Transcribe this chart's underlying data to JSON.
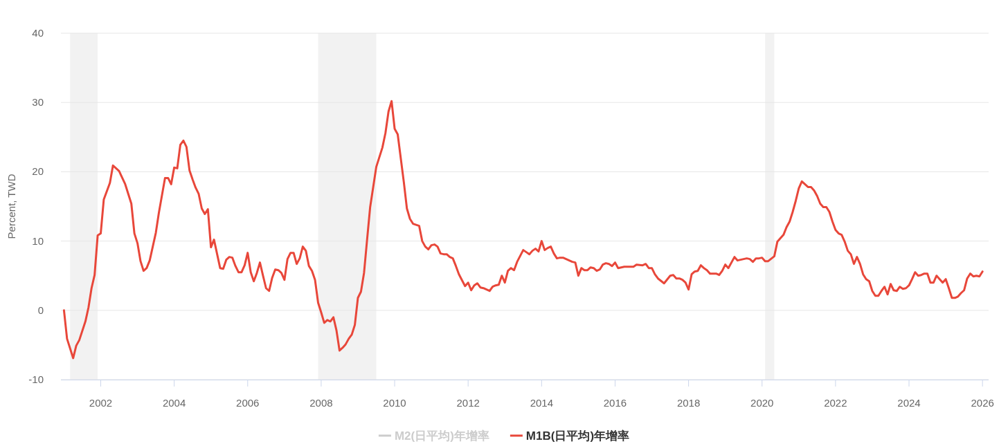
{
  "chart_data": {
    "type": "line",
    "ylabel": "Percent, TWD",
    "xlim": [
      "2000-12",
      "2026-03"
    ],
    "xticks": [
      "2002",
      "2004",
      "2006",
      "2008",
      "2010",
      "2012",
      "2014",
      "2016",
      "2018",
      "2020",
      "2022",
      "2024",
      "2026"
    ],
    "ylim": [
      -10,
      40
    ],
    "yticks": [
      -10,
      0,
      10,
      20,
      30,
      40
    ],
    "grid": "y",
    "legend": "bottom",
    "marker": "none",
    "line_style": "solid",
    "bands": [
      {
        "axis": "x",
        "from": "2001-03",
        "to": "2001-12",
        "color": "#f2f2f2"
      },
      {
        "axis": "x",
        "from": "2007-12",
        "to": "2009-07",
        "color": "#f2f2f2"
      },
      {
        "axis": "x",
        "from": "2020-02",
        "to": "2020-05",
        "color": "#f2f2f2"
      }
    ],
    "series": [
      {
        "name": "M2(日平均)年增率",
        "color": "#cccccc"
      },
      {
        "name": "M1B(日平均)年增率",
        "color": "#e8473a",
        "x": [
          "2001-01",
          "2001-02",
          "2001-04",
          "2001-05",
          "2001-06",
          "2001-08",
          "2001-09",
          "2001-10",
          "2001-11",
          "2001-12",
          "2002-01",
          "2002-02",
          "2002-04",
          "2002-05",
          "2002-07",
          "2002-09",
          "2002-11",
          "2002-12",
          "2003-01",
          "2003-02",
          "2003-03",
          "2003-04",
          "2003-05",
          "2003-06",
          "2003-07",
          "2003-08",
          "2003-10",
          "2003-11",
          "2003-12",
          "2004-01",
          "2004-02",
          "2004-03",
          "2004-04",
          "2004-05",
          "2004-06",
          "2004-07",
          "2004-08",
          "2004-09",
          "2004-10",
          "2004-11",
          "2004-12",
          "2005-01",
          "2005-02",
          "2005-04",
          "2005-05",
          "2005-06",
          "2005-07",
          "2005-08",
          "2005-09",
          "2005-10",
          "2005-11",
          "2005-12",
          "2006-01",
          "2006-02",
          "2006-03",
          "2006-04",
          "2006-05",
          "2006-06",
          "2006-07",
          "2006-08",
          "2006-09",
          "2006-10",
          "2006-11",
          "2006-12",
          "2007-01",
          "2007-02",
          "2007-03",
          "2007-04",
          "2007-05",
          "2007-06",
          "2007-07",
          "2007-08",
          "2007-09",
          "2007-10",
          "2007-11",
          "2007-12",
          "2008-01",
          "2008-02",
          "2008-03",
          "2008-04",
          "2008-05",
          "2008-06",
          "2008-07",
          "2008-08",
          "2008-09",
          "2008-10",
          "2008-11",
          "2008-12",
          "2009-01",
          "2009-02",
          "2009-03",
          "2009-04",
          "2009-05",
          "2009-07",
          "2009-09",
          "2009-10",
          "2009-11",
          "2009-12",
          "2010-01",
          "2010-02",
          "2010-04",
          "2010-05",
          "2010-06",
          "2010-07",
          "2010-09",
          "2010-10",
          "2010-11",
          "2010-12",
          "2011-01",
          "2011-02",
          "2011-03",
          "2011-04",
          "2011-05",
          "2011-06",
          "2011-07",
          "2011-08",
          "2011-09",
          "2011-10",
          "2011-12",
          "2012-01",
          "2012-02",
          "2012-03",
          "2012-04",
          "2012-05",
          "2012-06",
          "2012-07",
          "2012-08",
          "2012-09",
          "2012-10",
          "2012-11",
          "2012-12",
          "2013-01",
          "2013-02",
          "2013-03",
          "2013-04",
          "2013-05",
          "2013-07",
          "2013-08",
          "2013-09",
          "2013-10",
          "2013-11",
          "2013-12",
          "2014-01",
          "2014-02",
          "2014-03",
          "2014-04",
          "2014-05",
          "2014-06",
          "2014-07",
          "2014-08",
          "2014-10",
          "2014-11",
          "2014-12",
          "2015-01",
          "2015-02",
          "2015-03",
          "2015-04",
          "2015-05",
          "2015-06",
          "2015-07",
          "2015-08",
          "2015-09",
          "2015-10",
          "2015-11",
          "2015-12",
          "2016-01",
          "2016-02",
          "2016-04",
          "2016-06",
          "2016-07",
          "2016-08",
          "2016-10",
          "2016-11",
          "2016-12",
          "2017-01",
          "2017-02",
          "2017-03",
          "2017-05",
          "2017-07",
          "2017-08",
          "2017-09",
          "2017-10",
          "2017-11",
          "2017-12",
          "2018-01",
          "2018-02",
          "2018-03",
          "2018-04",
          "2018-05",
          "2018-06",
          "2018-07",
          "2018-08",
          "2018-10",
          "2018-11",
          "2018-12",
          "2019-01",
          "2019-02",
          "2019-04",
          "2019-05",
          "2019-07",
          "2019-08",
          "2019-09",
          "2019-10",
          "2019-11",
          "2019-12",
          "2020-01",
          "2020-02",
          "2020-03",
          "2020-05",
          "2020-06",
          "2020-07",
          "2020-08",
          "2020-09",
          "2020-10",
          "2020-11",
          "2020-12",
          "2021-01",
          "2021-02",
          "2021-03",
          "2021-04",
          "2021-05",
          "2021-06",
          "2021-07",
          "2021-08",
          "2021-09",
          "2021-10",
          "2021-11",
          "2021-12",
          "2022-01",
          "2022-02",
          "2022-03",
          "2022-04",
          "2022-05",
          "2022-06",
          "2022-07",
          "2022-08",
          "2022-09",
          "2022-10",
          "2022-11",
          "2022-12",
          "2023-01",
          "2023-02",
          "2023-03",
          "2023-04",
          "2023-05",
          "2023-06",
          "2023-07",
          "2023-08",
          "2023-09",
          "2023-10",
          "2023-11",
          "2023-12",
          "2024-01",
          "2024-02",
          "2024-03",
          "2024-04",
          "2024-05",
          "2024-06",
          "2024-07",
          "2024-08",
          "2024-09",
          "2024-10",
          "2024-11",
          "2024-12",
          "2025-01",
          "2025-02",
          "2025-03",
          "2025-04",
          "2025-05",
          "2025-06",
          "2025-07",
          "2025-08",
          "2025-09",
          "2025-10",
          "2025-11",
          "2025-12",
          "2026-01"
        ],
        "values": [
          0,
          -4.1,
          -6.9,
          -5.1,
          -4.3,
          -1.6,
          0.4,
          3.2,
          5.1,
          10.8,
          11.1,
          16.0,
          18.4,
          20.9,
          20.1,
          18.2,
          15.4,
          11.1,
          9.7,
          7.1,
          5.7,
          6.1,
          7.2,
          9.2,
          11.2,
          14.1,
          19.1,
          19.1,
          18.2,
          20.6,
          20.5,
          23.9,
          24.5,
          23.6,
          20.2,
          18.9,
          17.7,
          16.8,
          14.7,
          13.9,
          14.6,
          9.1,
          10.2,
          6.1,
          6.0,
          7.3,
          7.7,
          7.6,
          6.4,
          5.5,
          5.5,
          6.5,
          8.3,
          5.5,
          4.2,
          5.4,
          6.9,
          5.0,
          3.2,
          2.8,
          4.7,
          5.9,
          5.8,
          5.4,
          4.4,
          7.4,
          8.3,
          8.3,
          6.7,
          7.5,
          9.2,
          8.6,
          6.4,
          5.7,
          4.4,
          1.1,
          -0.3,
          -1.8,
          -1.4,
          -1.6,
          -1.0,
          -2.9,
          -5.8,
          -5.4,
          -4.9,
          -4.1,
          -3.5,
          -2.1,
          1.8,
          2.7,
          5.4,
          10.2,
          14.9,
          20.7,
          23.5,
          25.6,
          28.7,
          30.2,
          26.2,
          25.4,
          18.5,
          14.7,
          13.2,
          12.5,
          12.2,
          10.0,
          9.2,
          8.8,
          9.4,
          9.5,
          9.2,
          8.2,
          8.1,
          8.1,
          7.7,
          7.5,
          6.4,
          5.2,
          3.5,
          4.0,
          2.9,
          3.6,
          3.9,
          3.3,
          3.2,
          3.0,
          2.8,
          3.4,
          3.6,
          3.7,
          5.0,
          4.0,
          5.7,
          6.1,
          5.8,
          7.0,
          8.7,
          8.4,
          8.1,
          8.6,
          8.9,
          8.5,
          10.0,
          8.7,
          9.0,
          9.2,
          8.2,
          7.5,
          7.6,
          7.6,
          7.2,
          7.0,
          6.9,
          5.0,
          6.1,
          5.8,
          5.8,
          6.2,
          6.1,
          5.7,
          5.9,
          6.6,
          6.8,
          6.7,
          6.4,
          6.9,
          6.1,
          6.3,
          6.3,
          6.3,
          6.6,
          6.5,
          6.7,
          6.1,
          6.1,
          5.2,
          4.6,
          3.9,
          5.0,
          5.1,
          4.6,
          4.6,
          4.4,
          4.0,
          3.0,
          5.2,
          5.6,
          5.7,
          6.5,
          6.1,
          5.8,
          5.3,
          5.3,
          5.1,
          5.7,
          6.6,
          6.1,
          7.7,
          7.2,
          7.4,
          7.5,
          7.4,
          7.0,
          7.5,
          7.5,
          7.6,
          7.1,
          7.1,
          7.8,
          9.9,
          10.4,
          10.9,
          12.0,
          12.8,
          14.2,
          15.8,
          17.6,
          18.6,
          18.2,
          17.8,
          17.8,
          17.3,
          16.5,
          15.4,
          14.9,
          14.9,
          14.2,
          12.8,
          11.6,
          11.1,
          10.9,
          9.9,
          8.6,
          8.1,
          6.7,
          7.7,
          6.7,
          5.2,
          4.5,
          4.2,
          2.8,
          2.1,
          2.1,
          2.8,
          3.4,
          2.3,
          3.8,
          2.9,
          2.8,
          3.4,
          3.1,
          3.2,
          3.6,
          4.5,
          5.5,
          5.0,
          5.1,
          5.3,
          5.3,
          4.0,
          4.0,
          5.0,
          4.5,
          4.0,
          4.5,
          3.2,
          1.8,
          1.8,
          2.0,
          2.5,
          2.9,
          4.6,
          5.3,
          4.9,
          5.0,
          4.9,
          5.6
        ]
      }
    ]
  }
}
